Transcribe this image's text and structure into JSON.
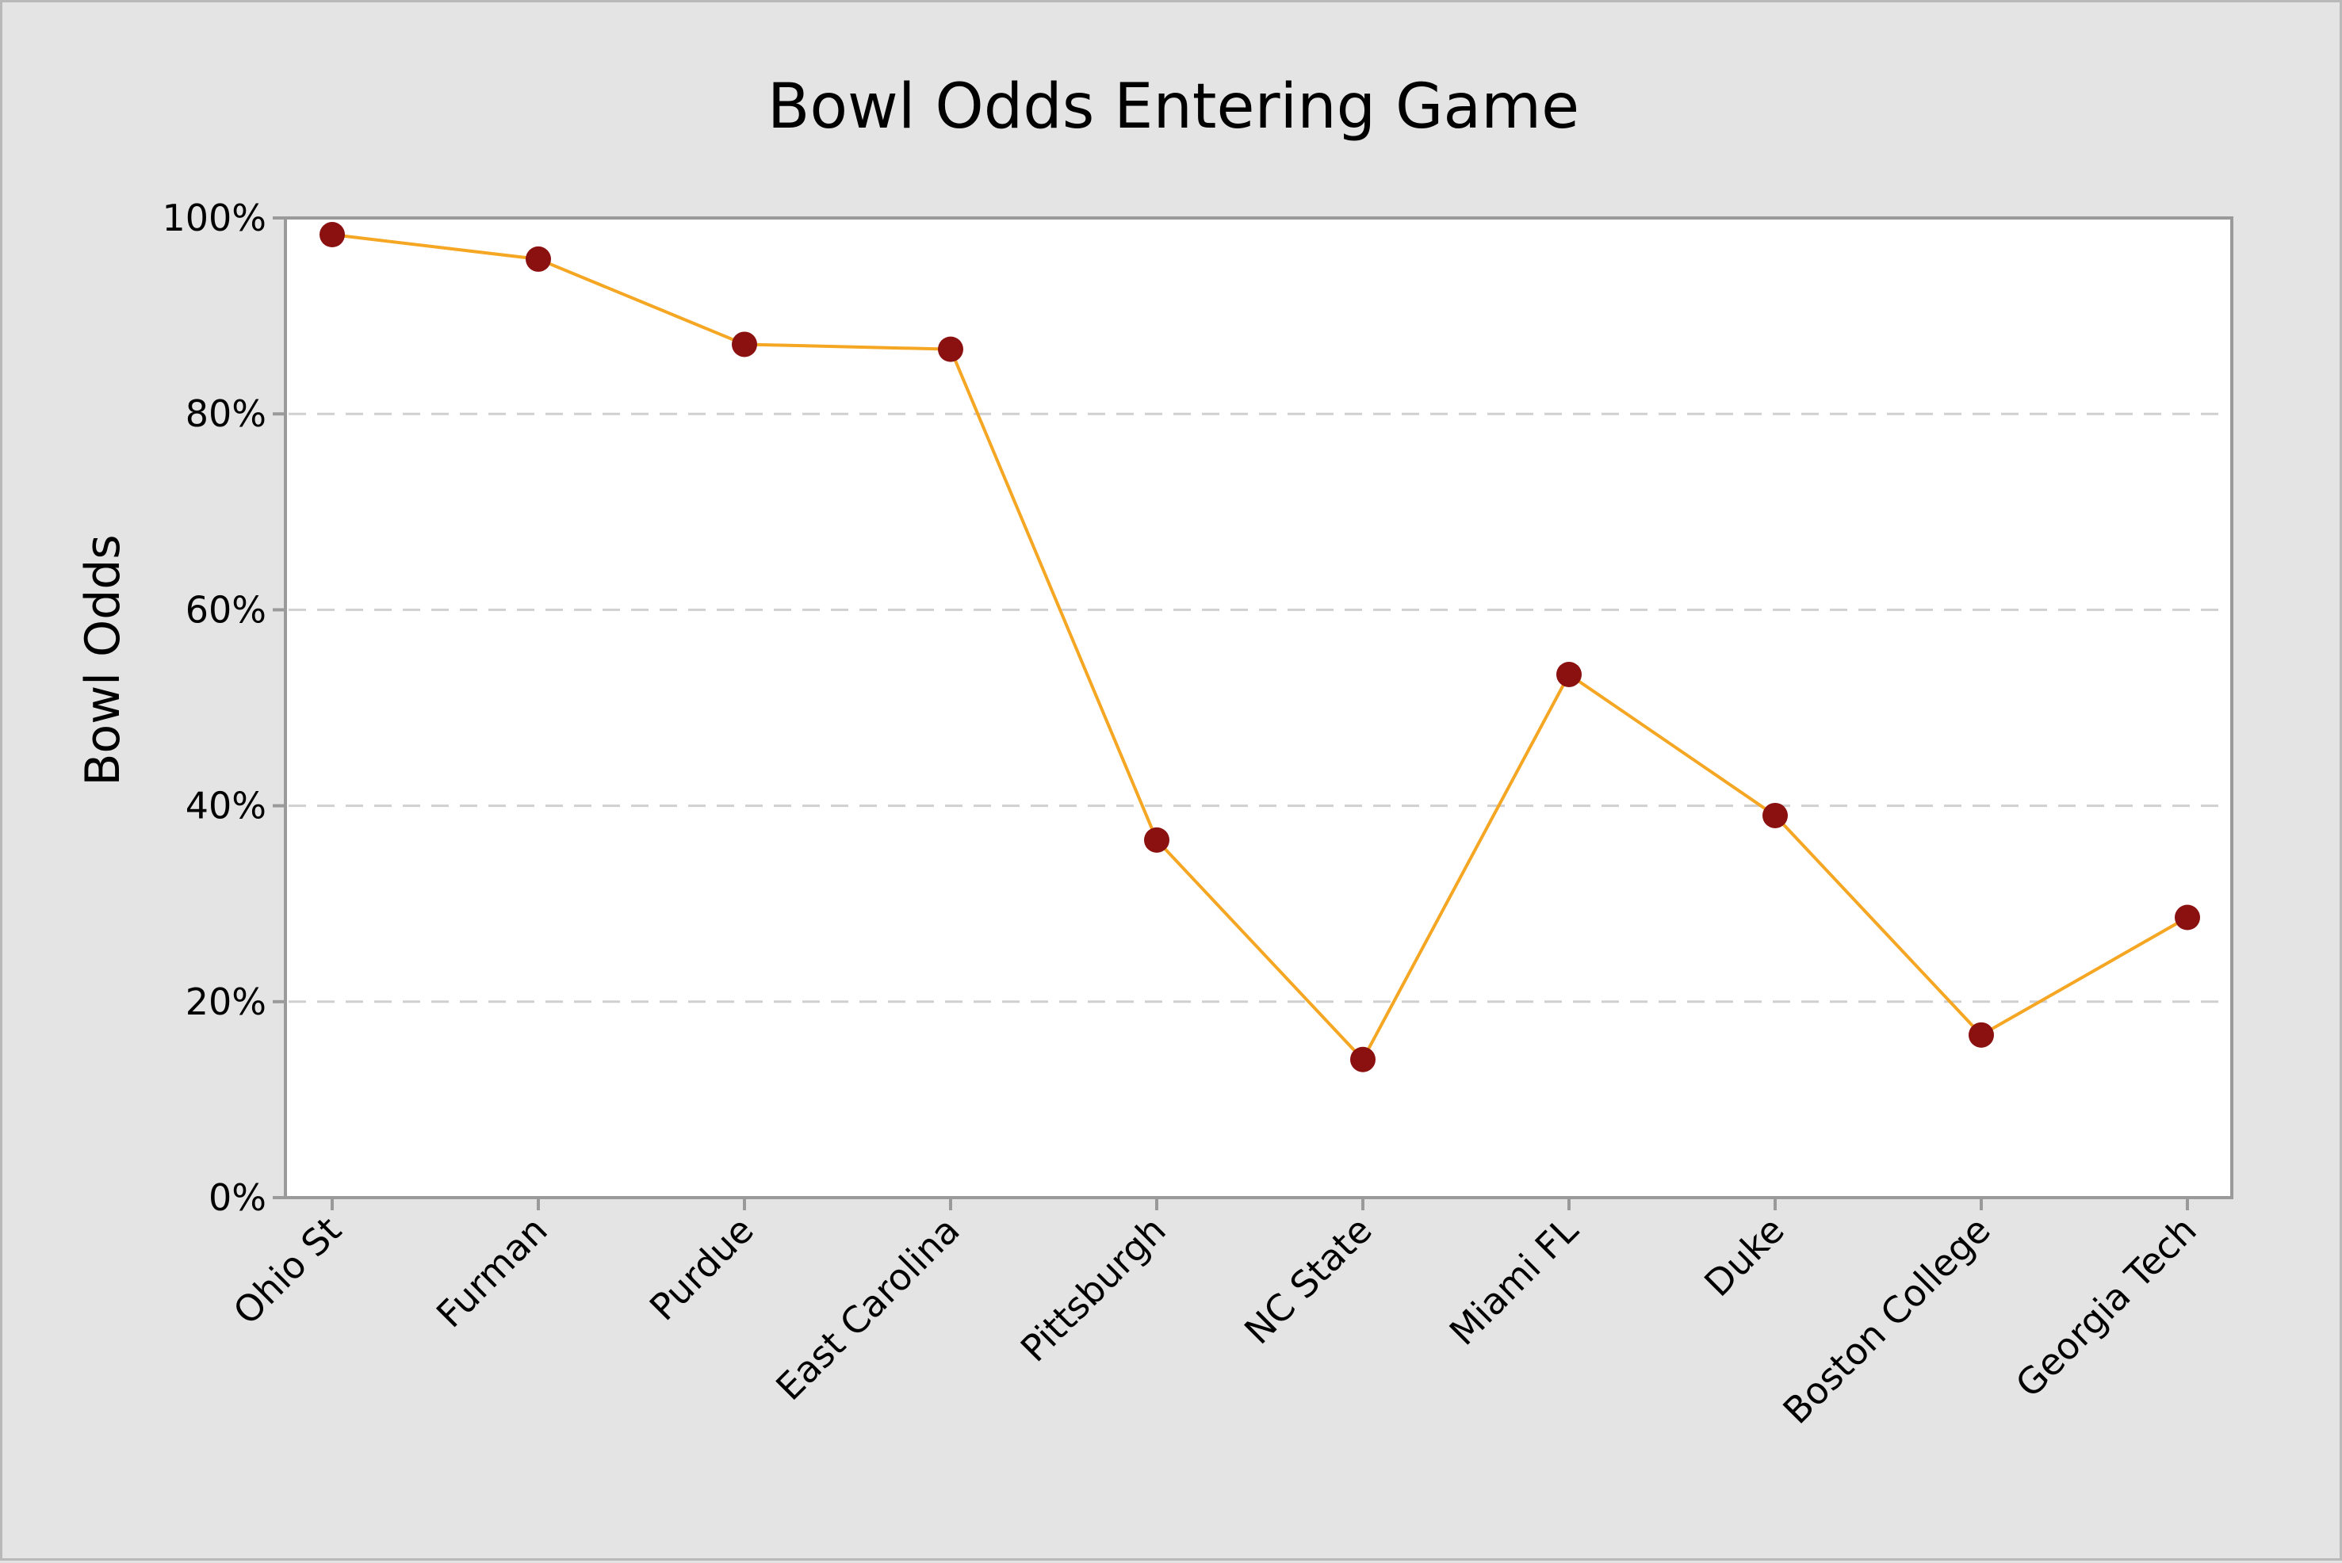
{
  "chart_data": {
    "type": "line",
    "title": "Bowl Odds Entering Game",
    "xlabel": "",
    "ylabel": "Bowl Odds",
    "categories": [
      "Ohio St",
      "Furman",
      "Purdue",
      "East Carolina",
      "Pittsburgh",
      "NC State",
      "Miami FL",
      "Duke",
      "Boston College",
      "Georgia Tech"
    ],
    "values": [
      98.3,
      95.8,
      87.1,
      86.6,
      36.5,
      14.1,
      53.4,
      39.0,
      16.6,
      28.6
    ],
    "ylim": [
      0,
      100
    ],
    "yticks": [
      0,
      20,
      40,
      60,
      80,
      100
    ],
    "ytick_labels": [
      "0%",
      "20%",
      "40%",
      "60%",
      "80%",
      "100%"
    ],
    "grid": "horizontal dashed",
    "legend": "none",
    "colors": {
      "line": "#f5a623",
      "marker": "#8b1010",
      "plot_background": "#ffffff",
      "figure_background": "#e4e4e4",
      "axis": "#9a9a9a",
      "grid": "#d0d0d0"
    }
  }
}
